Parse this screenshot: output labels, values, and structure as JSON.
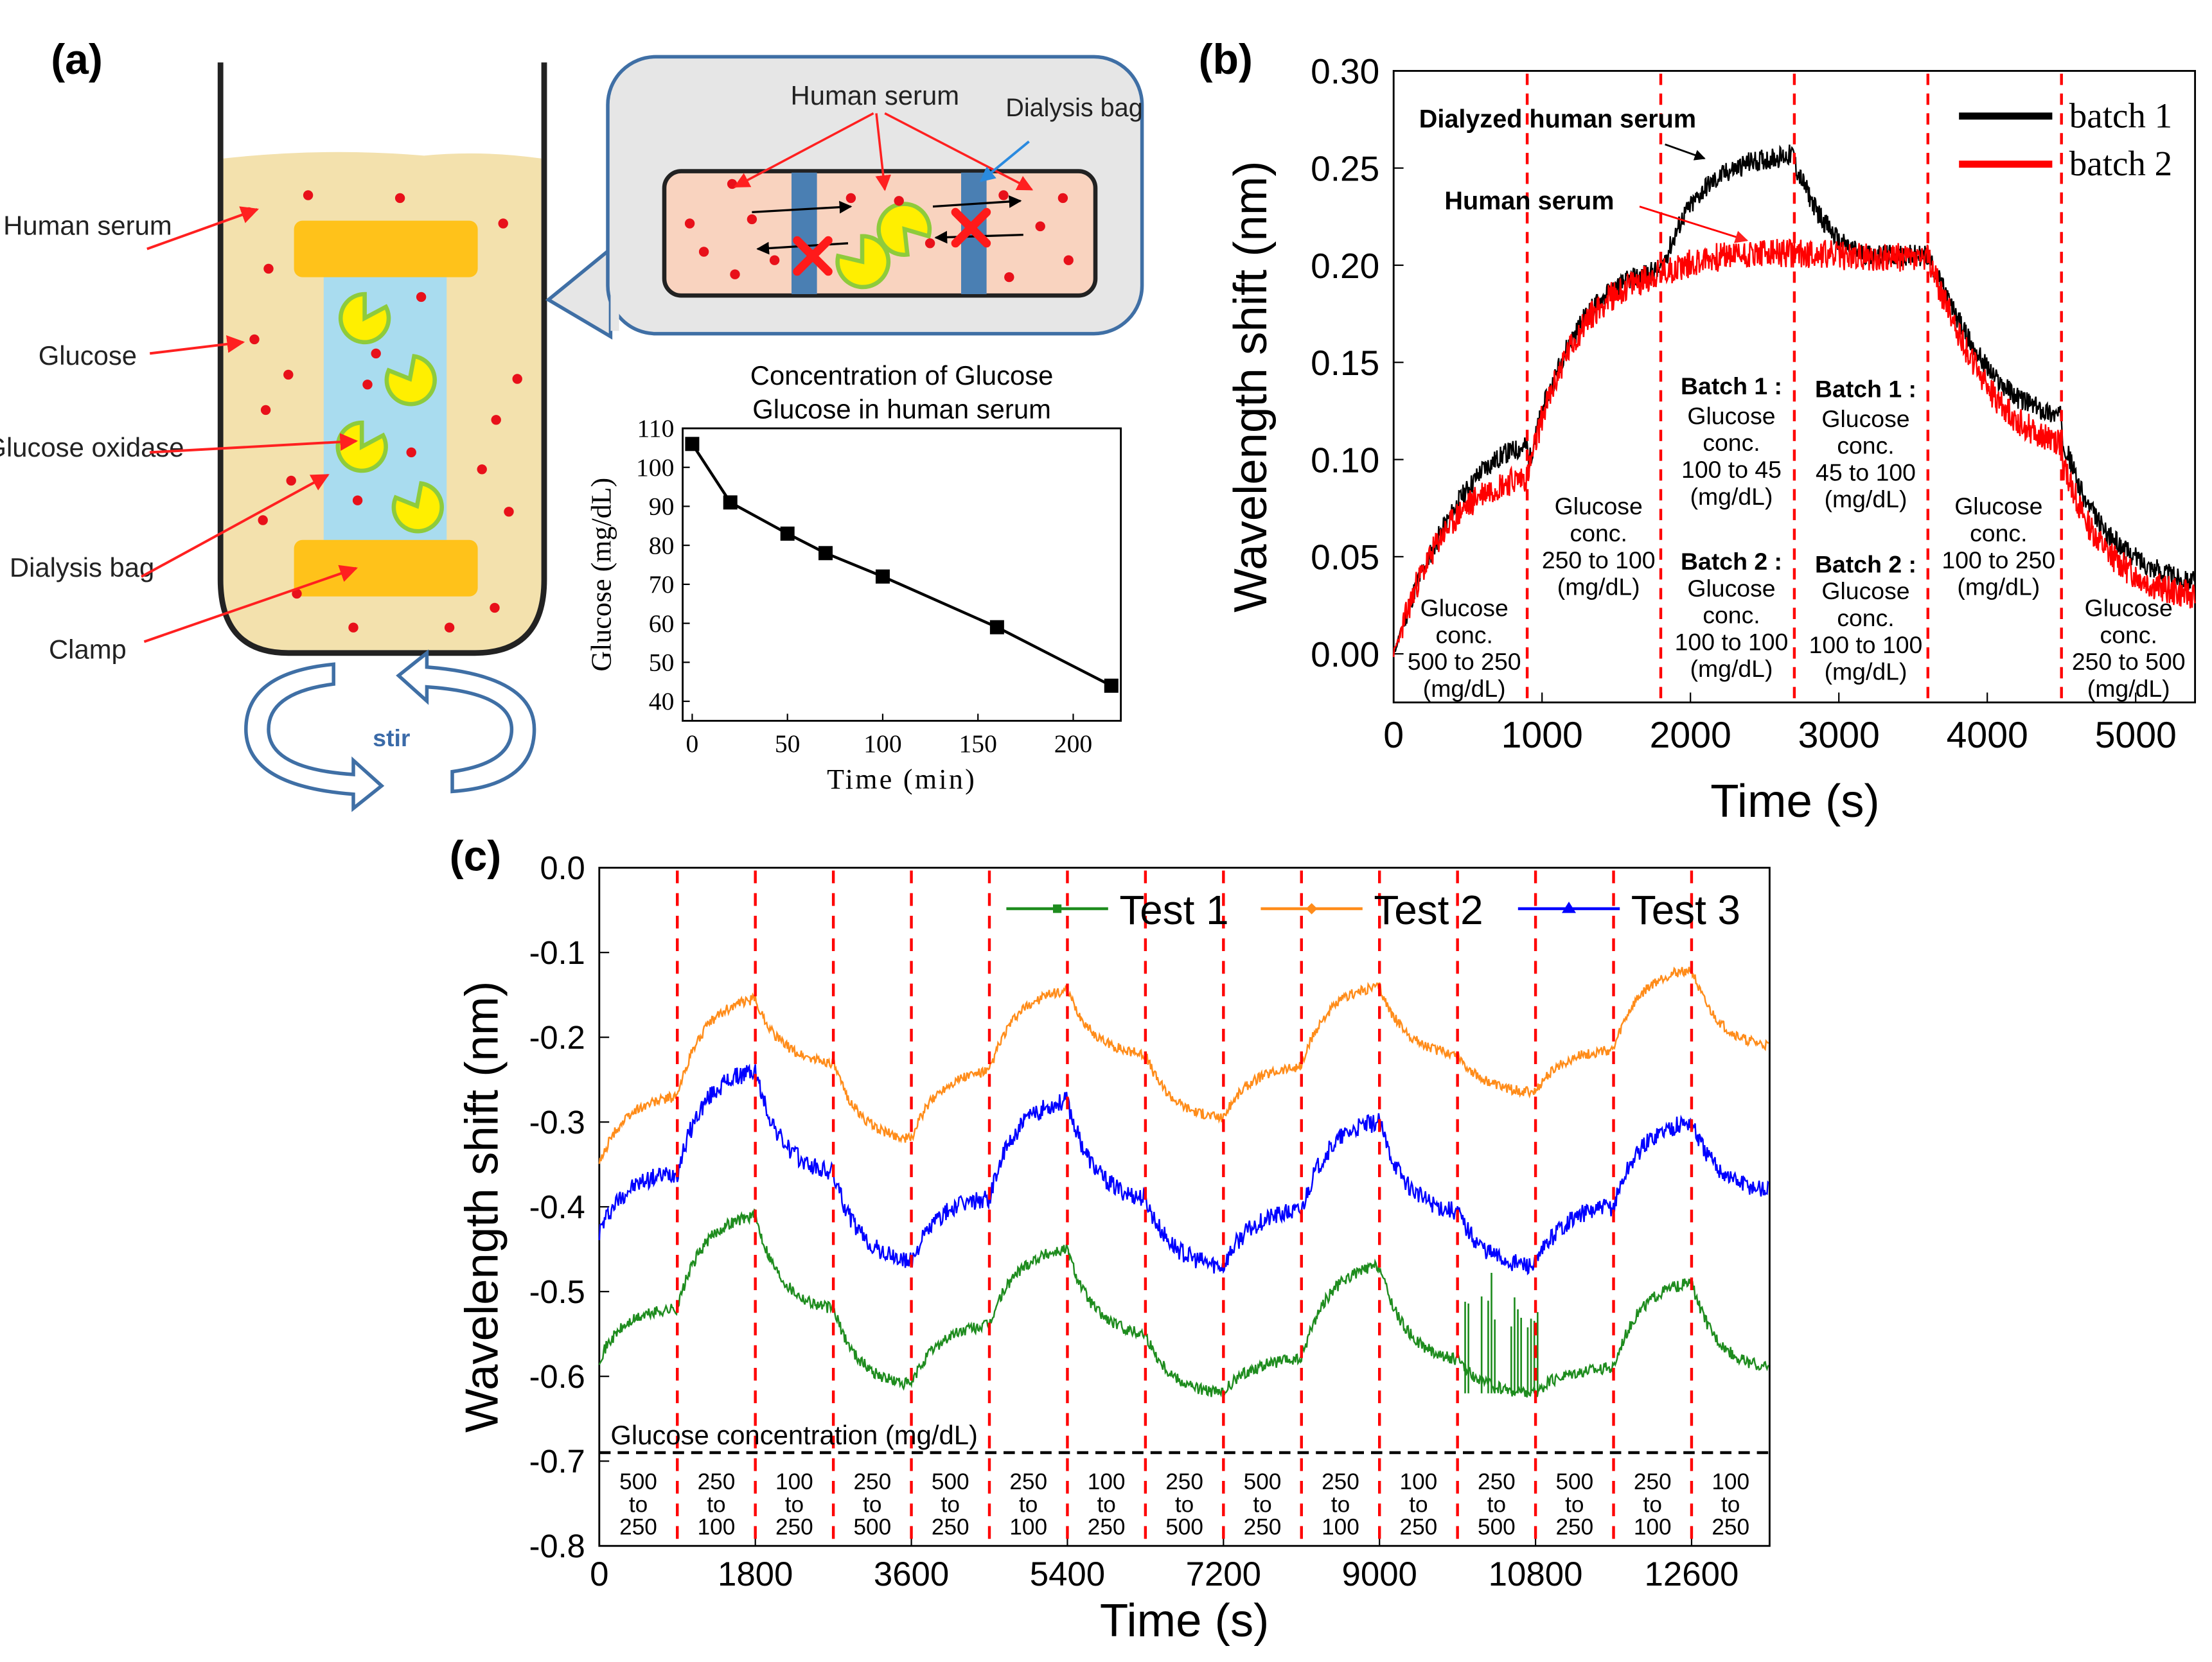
{
  "panels": {
    "a": {
      "label": "(a)",
      "beaker_labels": [
        "Human serum",
        "Glucose",
        "Glucose oxidase",
        "Dialysis bag",
        "Clamp"
      ],
      "stir_label": "stir",
      "inset_labels": {
        "human_serum": "Human serum",
        "dialysis_bag": "Dialysis bag"
      }
    },
    "b": {
      "label": "(b)",
      "annotations": {
        "dialyzed": "Dialyzed human serum",
        "human_serum": "Human serum",
        "seg1": "Glucose conc. 500 to 250 (mg/dL)",
        "seg2": "Glucose conc. 250 to 100 (mg/dL)",
        "seg3_b1_title": "Batch 1 :",
        "seg3_b1": "Glucose conc. 100 to 45 (mg/dL)",
        "seg3_b2_title": "Batch 2 :",
        "seg3_b2": "Glucose conc. 100 to 100 (mg/dL)",
        "seg4_b1_title": "Batch 1 :",
        "seg4_b1": "Glucose conc. 45 to 100 (mg/dL)",
        "seg4_b2_title": "Batch 2 :",
        "seg4_b2": "Glucose conc. 100 to 100 (mg/dL)",
        "seg5": "Glucose conc. 100 to 250 (mg/dL)",
        "seg6": "Glucose conc. 250 to 500 (mg/dL)"
      }
    },
    "c": {
      "label": "(c)",
      "conc_title": "Glucose concentration (mg/dL)",
      "segments": [
        "500 to 250",
        "250 to 100",
        "100 to 250",
        "250 to 500",
        "500 to 250",
        "250 to 100",
        "100 to 250",
        "250 to 500",
        "500 to 250",
        "250 to 100",
        "100 to 250",
        "250 to 500",
        "500 to 250",
        "250 to 100",
        "100 to 250"
      ]
    }
  },
  "chart_data": [
    {
      "id": "a-inset",
      "type": "line",
      "title": "Concentration of Glucose in human serum",
      "xlabel": "Time (min)",
      "ylabel": "Glucose (mg/dL)",
      "xlim": [
        -5,
        225
      ],
      "ylim": [
        35,
        110
      ],
      "xticks": [
        0,
        50,
        100,
        150,
        200
      ],
      "yticks": [
        40,
        50,
        60,
        70,
        80,
        90,
        100,
        110
      ],
      "x": [
        0,
        20,
        50,
        70,
        100,
        160,
        220
      ],
      "values": [
        106,
        91,
        83,
        78,
        72,
        59,
        44
      ],
      "color": "#000000"
    },
    {
      "id": "b",
      "type": "line",
      "xlabel": "Time (s)",
      "ylabel": "Wavelength shift (nm)",
      "xlim": [
        0,
        5400
      ],
      "ylim": [
        -0.025,
        0.3
      ],
      "xticks": [
        0,
        1000,
        2000,
        3000,
        4000,
        5000
      ],
      "yticks": [
        "0.00",
        "0.05",
        "0.10",
        "0.15",
        "0.20",
        "0.25",
        "0.30"
      ],
      "vlines": [
        900,
        1800,
        2700,
        3600,
        4500
      ],
      "legend_position": "top-right",
      "series": [
        {
          "name": "batch 1",
          "color": "#000000",
          "x": [
            0,
            150,
            300,
            450,
            600,
            750,
            900,
            910,
            1000,
            1150,
            1300,
            1450,
            1600,
            1800,
            1950,
            2100,
            2250,
            2400,
            2550,
            2700,
            2710,
            2850,
            3000,
            3150,
            3300,
            3450,
            3600,
            3750,
            3900,
            4050,
            4200,
            4350,
            4500,
            4510,
            4650,
            4800,
            4950,
            5100,
            5250,
            5400
          ],
          "values": [
            0.0,
            0.035,
            0.06,
            0.08,
            0.095,
            0.103,
            0.107,
            0.098,
            0.125,
            0.155,
            0.175,
            0.186,
            0.193,
            0.198,
            0.225,
            0.24,
            0.248,
            0.253,
            0.255,
            0.257,
            0.25,
            0.228,
            0.212,
            0.206,
            0.205,
            0.205,
            0.205,
            0.18,
            0.158,
            0.142,
            0.132,
            0.126,
            0.122,
            0.11,
            0.08,
            0.062,
            0.052,
            0.045,
            0.04,
            0.037
          ]
        },
        {
          "name": "batch 2",
          "color": "#ff0000",
          "x": [
            0,
            150,
            300,
            450,
            600,
            750,
            900,
            910,
            1000,
            1150,
            1300,
            1450,
            1600,
            1800,
            1950,
            2100,
            2250,
            2400,
            2550,
            2700,
            2850,
            3000,
            3150,
            3300,
            3450,
            3600,
            3750,
            3900,
            4050,
            4200,
            4350,
            4500,
            4510,
            4650,
            4800,
            4950,
            5100,
            5250,
            5400
          ],
          "values": [
            0.0,
            0.035,
            0.058,
            0.073,
            0.083,
            0.088,
            0.091,
            0.094,
            0.122,
            0.152,
            0.172,
            0.183,
            0.19,
            0.196,
            0.2,
            0.203,
            0.205,
            0.206,
            0.206,
            0.206,
            0.206,
            0.205,
            0.204,
            0.204,
            0.204,
            0.203,
            0.175,
            0.15,
            0.132,
            0.12,
            0.113,
            0.108,
            0.098,
            0.07,
            0.053,
            0.043,
            0.036,
            0.032,
            0.03
          ]
        }
      ]
    },
    {
      "id": "c",
      "type": "line",
      "xlabel": "Time (s)",
      "ylabel": "Wavelength shift (nm)",
      "xlim": [
        0,
        13500
      ],
      "ylim": [
        -0.8,
        0.0
      ],
      "xticks": [
        0,
        1800,
        3600,
        5400,
        7200,
        9000,
        10800,
        12600
      ],
      "yticks": [
        "0.0",
        "-0.1",
        "-0.2",
        "-0.3",
        "-0.4",
        "-0.5",
        "-0.6",
        "-0.7",
        "-0.8"
      ],
      "vlines": [
        900,
        1800,
        2700,
        3600,
        4500,
        5400,
        6300,
        7200,
        8100,
        9000,
        9900,
        10800,
        11700,
        12600
      ],
      "hline": -0.69,
      "legend_position": "top-right",
      "series": [
        {
          "name": "Test 1",
          "color": "#1e8c1e",
          "x": [
            0,
            900,
            1800,
            2700,
            3600,
            4500,
            5400,
            6300,
            7200,
            8100,
            9000,
            9900,
            10800,
            11700,
            12600,
            13500
          ],
          "values": [
            -0.58,
            -0.52,
            -0.41,
            -0.52,
            -0.61,
            -0.54,
            -0.45,
            -0.55,
            -0.62,
            -0.58,
            -0.47,
            -0.58,
            -0.62,
            -0.59,
            -0.49,
            -0.59
          ]
        },
        {
          "name": "Test 2",
          "color": "#ff8c1a",
          "x": [
            0,
            900,
            1800,
            2700,
            3600,
            4500,
            5400,
            6300,
            7200,
            8100,
            9000,
            9900,
            10800,
            11700,
            12600,
            13500
          ],
          "values": [
            -0.35,
            -0.27,
            -0.155,
            -0.23,
            -0.32,
            -0.24,
            -0.145,
            -0.22,
            -0.295,
            -0.235,
            -0.14,
            -0.22,
            -0.265,
            -0.215,
            -0.12,
            -0.21
          ]
        },
        {
          "name": "Test 3",
          "color": "#0000ff",
          "x": [
            0,
            900,
            1800,
            2700,
            3600,
            4500,
            5400,
            6300,
            7200,
            8100,
            9000,
            9900,
            10800,
            11700,
            12600,
            13500
          ],
          "values": [
            -0.43,
            -0.36,
            -0.24,
            -0.36,
            -0.465,
            -0.39,
            -0.275,
            -0.39,
            -0.47,
            -0.405,
            -0.3,
            -0.405,
            -0.47,
            -0.4,
            -0.3,
            -0.38
          ]
        }
      ]
    }
  ]
}
